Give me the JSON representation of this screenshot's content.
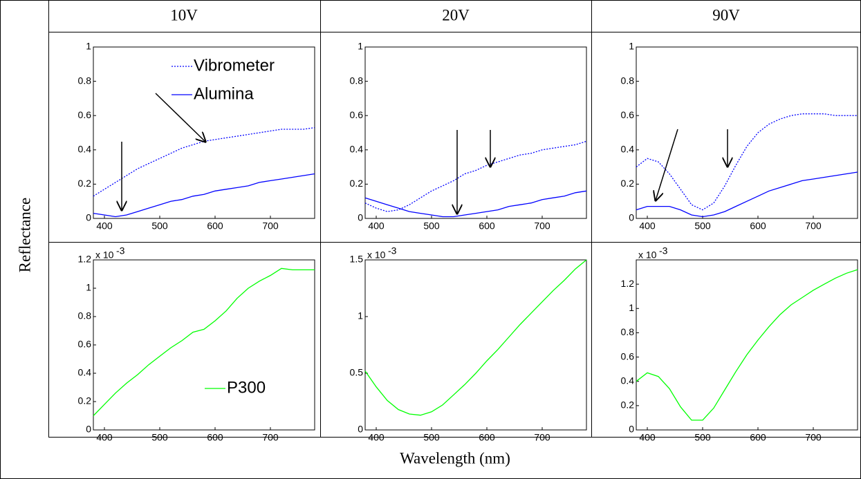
{
  "table": {
    "column_headers": [
      "10V",
      "20V",
      "90V"
    ],
    "row_label": "Reflectance",
    "column_label": "Wavelength (nm)"
  },
  "chart_data": [
    {
      "type": "line",
      "xlim": [
        380,
        780
      ],
      "xticks": [
        400,
        500,
        600,
        700
      ],
      "ylim": [
        0,
        1
      ],
      "yticks": [
        0,
        0.2,
        0.4,
        0.6,
        0.8,
        1
      ],
      "legend": true,
      "x": [
        380,
        400,
        420,
        440,
        460,
        480,
        500,
        520,
        540,
        560,
        580,
        600,
        620,
        640,
        660,
        680,
        700,
        720,
        740,
        760,
        780
      ],
      "series": [
        {
          "name": "Vibrometer",
          "color": "#0000ff",
          "dash": "dotted",
          "values": [
            0.13,
            0.17,
            0.21,
            0.25,
            0.29,
            0.32,
            0.35,
            0.38,
            0.41,
            0.43,
            0.45,
            0.46,
            0.47,
            0.48,
            0.49,
            0.5,
            0.51,
            0.52,
            0.52,
            0.52,
            0.53
          ]
        },
        {
          "name": "Alumina",
          "color": "#0000ff",
          "dash": "solid",
          "values": [
            0.03,
            0.02,
            0.01,
            0.02,
            0.04,
            0.06,
            0.08,
            0.1,
            0.11,
            0.13,
            0.14,
            0.16,
            0.17,
            0.18,
            0.19,
            0.21,
            0.22,
            0.23,
            0.24,
            0.25,
            0.26
          ]
        }
      ]
    },
    {
      "type": "line",
      "xlim": [
        380,
        780
      ],
      "xticks": [
        400,
        500,
        600,
        700
      ],
      "ylim": [
        0,
        1
      ],
      "yticks": [
        0,
        0.2,
        0.4,
        0.6,
        0.8,
        1
      ],
      "legend": false,
      "x": [
        380,
        400,
        420,
        440,
        460,
        480,
        500,
        520,
        540,
        560,
        580,
        600,
        620,
        640,
        660,
        680,
        700,
        720,
        740,
        760,
        780
      ],
      "series": [
        {
          "name": "Vibrometer",
          "color": "#0000ff",
          "dash": "dotted",
          "values": [
            0.09,
            0.06,
            0.04,
            0.05,
            0.08,
            0.12,
            0.16,
            0.19,
            0.22,
            0.26,
            0.28,
            0.31,
            0.33,
            0.35,
            0.37,
            0.38,
            0.4,
            0.41,
            0.42,
            0.43,
            0.45
          ]
        },
        {
          "name": "Alumina",
          "color": "#0000ff",
          "dash": "solid",
          "values": [
            0.12,
            0.1,
            0.08,
            0.06,
            0.04,
            0.03,
            0.02,
            0.01,
            0.01,
            0.02,
            0.03,
            0.04,
            0.05,
            0.07,
            0.08,
            0.09,
            0.11,
            0.12,
            0.13,
            0.15,
            0.16
          ]
        }
      ]
    },
    {
      "type": "line",
      "xlim": [
        380,
        780
      ],
      "xticks": [
        400,
        500,
        600,
        700
      ],
      "ylim": [
        0,
        1
      ],
      "yticks": [
        0,
        0.2,
        0.4,
        0.6,
        0.8,
        1
      ],
      "legend": false,
      "x": [
        380,
        400,
        420,
        440,
        460,
        480,
        500,
        520,
        540,
        560,
        580,
        600,
        620,
        640,
        660,
        680,
        700,
        720,
        740,
        760,
        780
      ],
      "series": [
        {
          "name": "Vibrometer",
          "color": "#0000ff",
          "dash": "dotted",
          "values": [
            0.3,
            0.35,
            0.33,
            0.26,
            0.17,
            0.08,
            0.05,
            0.09,
            0.19,
            0.31,
            0.42,
            0.5,
            0.55,
            0.58,
            0.6,
            0.61,
            0.61,
            0.61,
            0.6,
            0.6,
            0.6
          ]
        },
        {
          "name": "Alumina",
          "color": "#0000ff",
          "dash": "solid",
          "values": [
            0.05,
            0.07,
            0.07,
            0.07,
            0.05,
            0.02,
            0.01,
            0.02,
            0.04,
            0.07,
            0.1,
            0.13,
            0.16,
            0.18,
            0.2,
            0.22,
            0.23,
            0.24,
            0.25,
            0.26,
            0.27
          ]
        }
      ]
    },
    {
      "type": "line",
      "xlim": [
        380,
        780
      ],
      "xticks": [
        400,
        500,
        600,
        700
      ],
      "ylim": [
        0,
        1.2
      ],
      "yticks": [
        0,
        0.2,
        0.4,
        0.6,
        0.8,
        1,
        1.2
      ],
      "legend": true,
      "y_multiplier": {
        "base": "x 10",
        "exponent": "-3"
      },
      "x": [
        380,
        400,
        420,
        440,
        460,
        480,
        500,
        520,
        540,
        560,
        580,
        600,
        620,
        640,
        660,
        680,
        700,
        720,
        740,
        760,
        780
      ],
      "series": [
        {
          "name": "P300",
          "color": "#00ff00",
          "dash": "solid",
          "values": [
            0.1,
            0.18,
            0.26,
            0.33,
            0.39,
            0.46,
            0.52,
            0.58,
            0.63,
            0.69,
            0.71,
            0.77,
            0.84,
            0.93,
            1.0,
            1.05,
            1.09,
            1.14,
            1.13,
            1.13,
            1.13
          ]
        }
      ]
    },
    {
      "type": "line",
      "xlim": [
        380,
        780
      ],
      "xticks": [
        400,
        500,
        600,
        700
      ],
      "ylim": [
        0,
        1.5
      ],
      "yticks": [
        0,
        0.5,
        1,
        1.5
      ],
      "legend": false,
      "y_multiplier": {
        "base": "x 10",
        "exponent": "-3"
      },
      "x": [
        380,
        400,
        420,
        440,
        460,
        480,
        500,
        520,
        540,
        560,
        580,
        600,
        620,
        640,
        660,
        680,
        700,
        720,
        740,
        760,
        780
      ],
      "series": [
        {
          "name": "P300",
          "color": "#00ff00",
          "dash": "solid",
          "values": [
            0.52,
            0.38,
            0.26,
            0.18,
            0.14,
            0.13,
            0.16,
            0.22,
            0.31,
            0.4,
            0.5,
            0.61,
            0.71,
            0.82,
            0.93,
            1.03,
            1.13,
            1.23,
            1.32,
            1.42,
            1.5
          ]
        }
      ]
    },
    {
      "type": "line",
      "xlim": [
        380,
        780
      ],
      "xticks": [
        400,
        500,
        600,
        700
      ],
      "ylim": [
        0,
        1.4
      ],
      "yticks": [
        0,
        0.2,
        0.4,
        0.6,
        0.8,
        1,
        1.2
      ],
      "legend": false,
      "y_multiplier": {
        "base": "x 10",
        "exponent": "-3"
      },
      "x": [
        380,
        400,
        420,
        440,
        460,
        480,
        500,
        520,
        540,
        560,
        580,
        600,
        620,
        640,
        660,
        680,
        700,
        720,
        740,
        760,
        780
      ],
      "series": [
        {
          "name": "P300",
          "color": "#00ff00",
          "dash": "solid",
          "values": [
            0.4,
            0.47,
            0.44,
            0.34,
            0.19,
            0.08,
            0.08,
            0.18,
            0.33,
            0.48,
            0.62,
            0.74,
            0.85,
            0.95,
            1.03,
            1.09,
            1.15,
            1.2,
            1.25,
            1.29,
            1.32
          ]
        }
      ]
    }
  ]
}
